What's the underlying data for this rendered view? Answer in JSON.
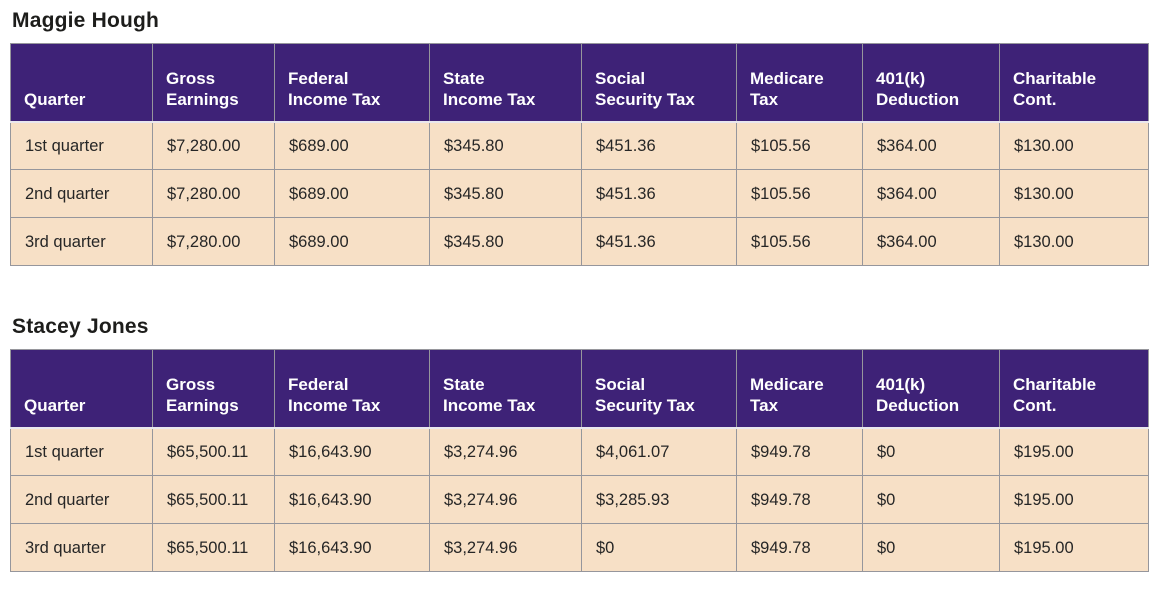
{
  "colors": {
    "header_bg": "#3e2277",
    "header_text": "#ffffff",
    "row_bg": "#f7e0c6",
    "body_text": "#262626",
    "grid_line": "#96969c",
    "title_text": "#1d1d1b",
    "page_bg": "#ffffff"
  },
  "sections": [
    {
      "title": "Maggie Hough",
      "columns": [
        "Quarter",
        "Gross\nEarnings",
        "Federal\nIncome Tax",
        "State\nIncome Tax",
        "Social\nSecurity Tax",
        "Medicare\nTax",
        "401(k)\nDeduction",
        "Charitable\nCont."
      ],
      "rows": [
        [
          "1st quarter",
          "$7,280.00",
          "$689.00",
          "$345.80",
          "$451.36",
          "$105.56",
          "$364.00",
          "$130.00"
        ],
        [
          "2nd quarter",
          "$7,280.00",
          "$689.00",
          "$345.80",
          "$451.36",
          "$105.56",
          "$364.00",
          "$130.00"
        ],
        [
          "3rd quarter",
          "$7,280.00",
          "$689.00",
          "$345.80",
          "$451.36",
          "$105.56",
          "$364.00",
          "$130.00"
        ]
      ]
    },
    {
      "title": "Stacey Jones",
      "columns": [
        "Quarter",
        "Gross\nEarnings",
        "Federal\nIncome Tax",
        "State\nIncome Tax",
        "Social\nSecurity Tax",
        "Medicare\nTax",
        "401(k)\nDeduction",
        "Charitable\nCont."
      ],
      "rows": [
        [
          "1st quarter",
          "$65,500.11",
          "$16,643.90",
          "$3,274.96",
          "$4,061.07",
          "$949.78",
          "$0",
          "$195.00"
        ],
        [
          "2nd quarter",
          "$65,500.11",
          "$16,643.90",
          "$3,274.96",
          "$3,285.93",
          "$949.78",
          "$0",
          "$195.00"
        ],
        [
          "3rd quarter",
          "$65,500.11",
          "$16,643.90",
          "$3,274.96",
          "$0",
          "$949.78",
          "$0",
          "$195.00"
        ]
      ]
    }
  ]
}
